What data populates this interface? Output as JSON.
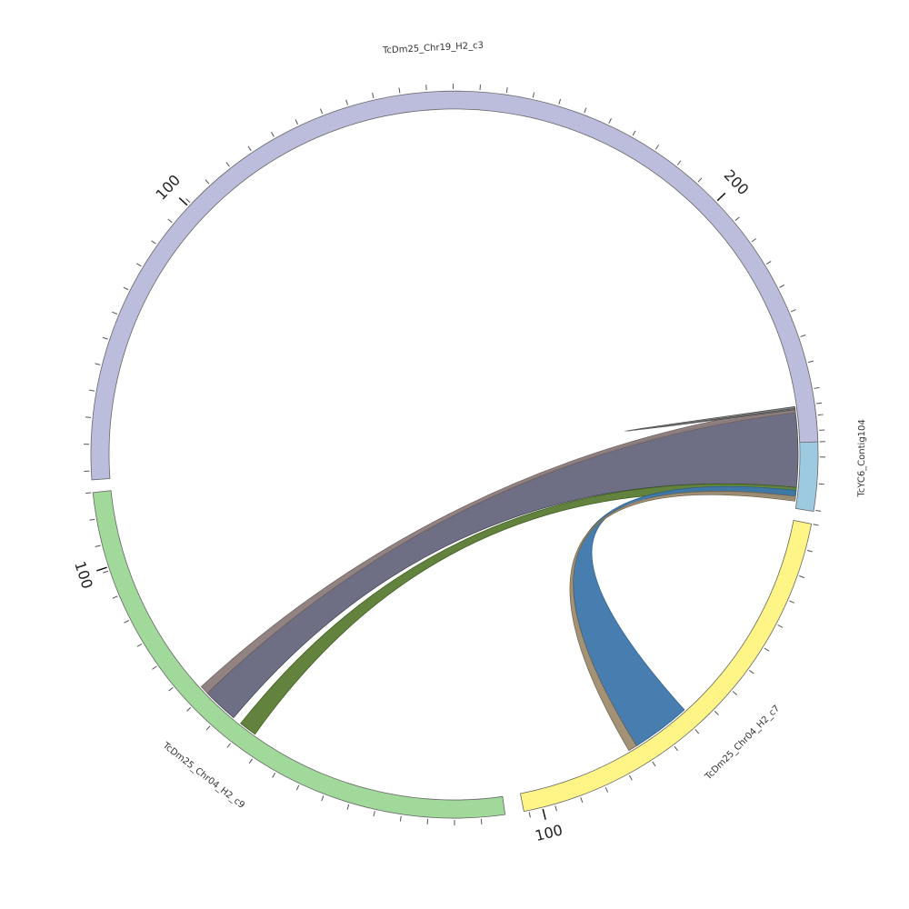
{
  "chart_data": {
    "type": "chord",
    "segments": [
      {
        "name": "TcYC6_Contig104",
        "label": "TcYC6_Contig104",
        "color": "#9ecae1",
        "start": 82,
        "end": 99,
        "ticks_reversed": false,
        "major_ticks": []
      },
      {
        "name": "TcDm25_Chr04_H2_c7",
        "label": "TcDm25_Chr04_H2_c7",
        "color": "#fff486",
        "start": 101,
        "end": 169,
        "ticks_reversed": false,
        "major_ticks": [
          {
            "value": 100,
            "label": "100",
            "angle": 166
          }
        ]
      },
      {
        "name": "TcDm25_Chr04_H2_c9",
        "label": "TcDm25_Chr04_H2_c9",
        "color": "#a1d99b",
        "start": 172,
        "end": 264,
        "ticks_reversed": true,
        "major_ticks": [
          {
            "value": 100,
            "label": "100",
            "angle": 252
          }
        ]
      },
      {
        "name": "TcDm25_Chr19_H2_c3",
        "label": "TcDm25_Chr19_H2_c3",
        "color": "#bcbddc",
        "start": 266,
        "end": 448,
        "ticks_reversed": true,
        "major_ticks": [
          {
            "value": 100,
            "label": "100",
            "angle": 313
          },
          {
            "value": 200,
            "label": "200",
            "angle": 406
          }
        ]
      }
    ],
    "links": [
      {
        "from": "TcYC6_Contig104",
        "to": "TcDm25_Chr04_H2_c9",
        "color": "#66677d",
        "stroke": "#3d3e4c",
        "a1": 82.5,
        "a2": 95.5,
        "b1": 220.0,
        "b2": 226.0
      },
      {
        "from": "TcYC6_Contig104",
        "to": "TcDm25_Chr04_H2_c9",
        "color": "#8c7c7c",
        "stroke": "#6b5b5b",
        "a1": 82.0,
        "a2": 83.0,
        "b1": 226.0,
        "b2": 227.5
      },
      {
        "from": "TcYC6_Contig104",
        "to": "TcDm25_Chr04_H2_c9",
        "color": "#5a7b34",
        "stroke": "#3a5a1a",
        "a1": 95.5,
        "a2": 97.5,
        "b1": 215.5,
        "b2": 218.5
      },
      {
        "from": "TcYC6_Contig104",
        "to": "TcDm25_Chr04_H2_c7",
        "color": "#3d77ab",
        "stroke": "#2b5c8a",
        "a1": 96.0,
        "a2": 97.5,
        "b1": 138.0,
        "b2": 148.0
      },
      {
        "from": "TcYC6_Contig104",
        "to": "TcDm25_Chr04_H2_c7",
        "color": "#9f8c70",
        "stroke": "#6e6048",
        "a1": 97.0,
        "a2": 97.8,
        "b1": 148.0,
        "b2": 149.5
      },
      {
        "from": "TcYC6_Contig104",
        "to": "TcDm25_Chr19_H2_c3",
        "color": "#888888",
        "stroke": "#444444",
        "a1": 82.0,
        "a2": 82.3,
        "b1": 442.0,
        "b2": 442.5
      }
    ]
  }
}
